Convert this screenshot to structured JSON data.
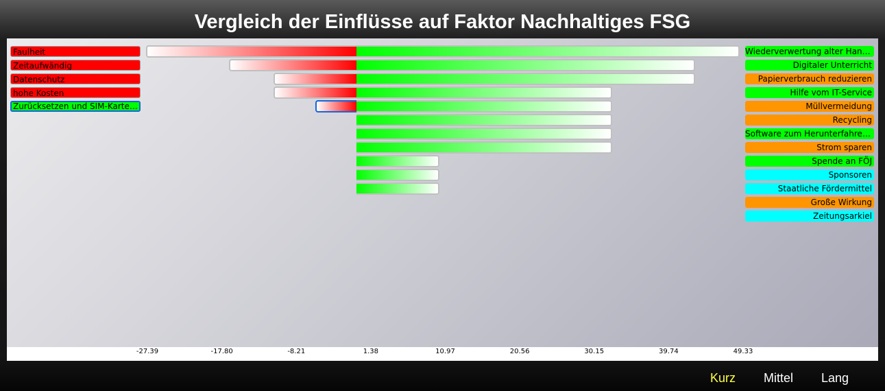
{
  "title": "Vergleich der Einflüsse auf Faktor Nachhaltiges FSG",
  "colors": {
    "negative": "#ff0000",
    "positive": "#00ff00",
    "orange": "#ff9500",
    "cyan": "#00ffff",
    "selection": "#1565e0",
    "active_tab": "#ffff44",
    "tab": "#ffffff"
  },
  "chart_data": {
    "type": "bar",
    "orientation": "horizontal-diverging",
    "xlim": [
      -27.39,
      49.33
    ],
    "x_ticks": [
      "-27.39",
      "-17.80",
      "-8.21",
      "1.38",
      "10.97",
      "20.56",
      "30.15",
      "39.74",
      "49.33"
    ],
    "zero": 0,
    "negative_series": [
      {
        "label": "Faulheit",
        "value": -28,
        "color": "#ff0000"
      },
      {
        "label": "Zeitaufwändig",
        "value": -17,
        "color": "#ff0000"
      },
      {
        "label": "Datenschutz",
        "value": -11,
        "color": "#ff0000"
      },
      {
        "label": "hohe Kosten",
        "value": -11,
        "color": "#ff0000"
      },
      {
        "label": "Zurücksetzen und SIM-Karte e...",
        "value": -5.5,
        "color": "#00ff00",
        "selected": true
      }
    ],
    "positive_series": [
      {
        "label": "Wiederverwertung alter Handy...",
        "value": 51,
        "color": "#00ff00"
      },
      {
        "label": "Digitaler Unterricht",
        "value": 45,
        "color": "#00ff00"
      },
      {
        "label": "Papierverbrauch reduzieren",
        "value": 45,
        "color": "#ff9500"
      },
      {
        "label": "Hilfe vom IT-Service",
        "value": 34,
        "color": "#00ff00"
      },
      {
        "label": "Müllvermeidung",
        "value": 34,
        "color": "#ff9500"
      },
      {
        "label": "Recycling",
        "value": 34,
        "color": "#ff9500"
      },
      {
        "label": "Software zum Herunterfahren ...",
        "value": 34,
        "color": "#00ff00"
      },
      {
        "label": "Strom sparen",
        "value": 34,
        "color": "#ff9500"
      },
      {
        "label": "Spende an FÖJ",
        "value": 11,
        "color": "#00ff00"
      },
      {
        "label": "Sponsoren",
        "value": 11,
        "color": "#00ffff"
      },
      {
        "label": "Staatliche Fördermittel",
        "value": 11,
        "color": "#00ffff"
      },
      {
        "label": "Große Wirkung",
        "value": null,
        "color": "#ff9500"
      },
      {
        "label": "Zeitungsarkiel",
        "value": null,
        "color": "#00ffff"
      }
    ]
  },
  "nav": {
    "tabs": [
      "Kurz",
      "Mittel",
      "Lang"
    ],
    "active": "Kurz"
  }
}
